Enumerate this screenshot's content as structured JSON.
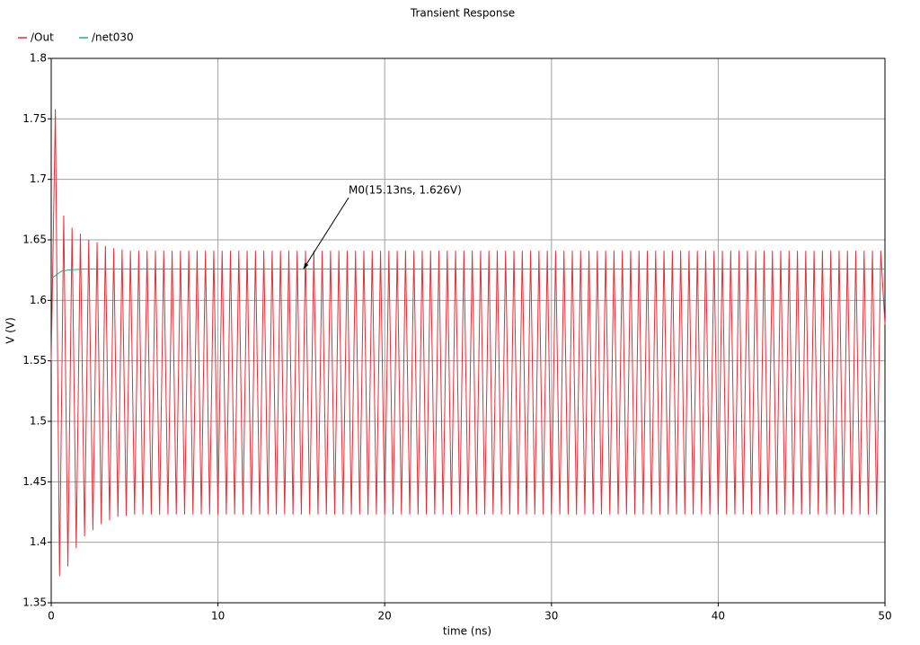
{
  "chart_data": {
    "type": "line",
    "title": "Transient Response",
    "xlabel": "time (ns)",
    "ylabel": "V (V)",
    "xlim": [
      0,
      50
    ],
    "ylim": [
      1.35,
      1.8
    ],
    "xticks": [
      0,
      10,
      20,
      30,
      40,
      50
    ],
    "yticks": [
      1.8,
      1.75,
      1.7,
      1.65,
      1.6,
      1.55,
      1.5,
      1.45,
      1.4,
      1.35
    ],
    "grid": true,
    "legend": "top-left",
    "series": [
      {
        "name": "/Out",
        "color": "#e0303a",
        "x": [
          0,
          0.25,
          0.5,
          0.75,
          1,
          1.25,
          1.5,
          1.75,
          2,
          2.25,
          2.5,
          2.75,
          3,
          3.25,
          3.5,
          3.75,
          4,
          4.25,
          4.5,
          4.75,
          5,
          5.25,
          5.5,
          5.75,
          6,
          6.25,
          6.5,
          6.75,
          7,
          7.25,
          7.5,
          7.75,
          8,
          8.25,
          8.5,
          8.75,
          9,
          9.25,
          9.5,
          9.75,
          10,
          10.25,
          10.5,
          10.75,
          11,
          11.25,
          11.5,
          11.75,
          12,
          12.25,
          12.5,
          12.75,
          13,
          13.25,
          13.5,
          13.75,
          14,
          14.25,
          14.5,
          14.75,
          15,
          15.25,
          15.5,
          15.75,
          16,
          16.25,
          16.5,
          16.75,
          17,
          17.25,
          17.5,
          17.75,
          18,
          18.25,
          18.5,
          18.75,
          19,
          19.25,
          19.5,
          19.75,
          20,
          20.25,
          20.5,
          20.75,
          21,
          21.25,
          21.5,
          21.75,
          22,
          22.25,
          22.5,
          22.75,
          23,
          23.25,
          23.5,
          23.75,
          24,
          24.25,
          24.5,
          24.75,
          25,
          25.25,
          25.5,
          25.75,
          26,
          26.25,
          26.5,
          26.75,
          27,
          27.25,
          27.5,
          27.75,
          28,
          28.25,
          28.5,
          28.75,
          29,
          29.25,
          29.5,
          29.75,
          30,
          30.25,
          30.5,
          30.75,
          31,
          31.25,
          31.5,
          31.75,
          32,
          32.25,
          32.5,
          32.75,
          33,
          33.25,
          33.5,
          33.75,
          34,
          34.25,
          34.5,
          34.75,
          35,
          35.25,
          35.5,
          35.75,
          36,
          36.25,
          36.5,
          36.75,
          37,
          37.25,
          37.5,
          37.75,
          38,
          38.25,
          38.5,
          38.75,
          39,
          39.25,
          39.5,
          39.75,
          40,
          40.25,
          40.5,
          40.75,
          41,
          41.25,
          41.5,
          41.75,
          42,
          42.25,
          42.5,
          42.75,
          43,
          43.25,
          43.5,
          43.75,
          44,
          44.25,
          44.5,
          44.75,
          45,
          45.25,
          45.5,
          45.75,
          46,
          46.25,
          46.5,
          46.75,
          47,
          47.25,
          47.5,
          47.75,
          48,
          48.25,
          48.5,
          48.75,
          49,
          49.25,
          49.5,
          49.75,
          50
        ],
        "values": [
          1.55,
          1.758,
          1.372,
          1.67,
          1.38,
          1.66,
          1.395,
          1.655,
          1.405,
          1.65,
          1.41,
          1.648,
          1.415,
          1.645,
          1.418,
          1.643,
          1.421,
          1.642,
          1.422,
          1.641,
          1.423,
          1.641,
          1.423,
          1.641,
          1.423,
          1.641,
          1.423,
          1.641,
          1.423,
          1.641,
          1.423,
          1.641,
          1.423,
          1.641,
          1.423,
          1.641,
          1.423,
          1.641,
          1.423,
          1.641,
          1.423,
          1.641,
          1.423,
          1.641,
          1.423,
          1.641,
          1.423,
          1.641,
          1.423,
          1.641,
          1.423,
          1.641,
          1.423,
          1.641,
          1.423,
          1.641,
          1.423,
          1.641,
          1.423,
          1.641,
          1.423,
          1.641,
          1.423,
          1.641,
          1.423,
          1.641,
          1.423,
          1.641,
          1.423,
          1.641,
          1.423,
          1.641,
          1.423,
          1.641,
          1.423,
          1.641,
          1.423,
          1.641,
          1.423,
          1.641,
          1.423,
          1.641,
          1.423,
          1.641,
          1.423,
          1.641,
          1.423,
          1.641,
          1.423,
          1.641,
          1.423,
          1.641,
          1.423,
          1.641,
          1.423,
          1.641,
          1.423,
          1.641,
          1.423,
          1.641,
          1.423,
          1.641,
          1.423,
          1.641,
          1.423,
          1.641,
          1.423,
          1.641,
          1.423,
          1.641,
          1.423,
          1.641,
          1.423,
          1.641,
          1.423,
          1.641,
          1.423,
          1.641,
          1.423,
          1.641,
          1.423,
          1.641,
          1.423,
          1.641,
          1.423,
          1.641,
          1.423,
          1.641,
          1.423,
          1.641,
          1.423,
          1.641,
          1.423,
          1.641,
          1.423,
          1.641,
          1.423,
          1.641,
          1.423,
          1.641,
          1.423,
          1.641,
          1.423,
          1.641,
          1.423,
          1.641,
          1.423,
          1.641,
          1.423,
          1.641,
          1.423,
          1.641,
          1.423,
          1.641,
          1.423,
          1.641,
          1.423,
          1.641,
          1.423,
          1.641,
          1.423,
          1.641,
          1.423,
          1.641,
          1.423,
          1.641,
          1.423,
          1.641,
          1.423,
          1.641,
          1.423,
          1.641,
          1.423,
          1.641,
          1.423,
          1.641,
          1.423,
          1.641,
          1.423,
          1.641,
          1.423,
          1.641,
          1.423,
          1.641,
          1.423,
          1.641,
          1.423,
          1.641,
          1.423,
          1.641,
          1.423,
          1.641,
          1.423,
          1.641,
          1.423,
          1.641,
          1.423,
          1.641,
          1.423,
          1.641,
          1.58
        ]
      },
      {
        "name": "/net030",
        "color": "#2aa88a",
        "x": [
          0,
          0.3,
          0.6,
          1,
          2,
          50
        ],
        "values": [
          1.618,
          1.621,
          1.624,
          1.625,
          1.626,
          1.626
        ]
      }
    ],
    "annotations": [
      {
        "text": "M0(15.13ns, 1.626V)",
        "x": 15.13,
        "y": 1.626
      }
    ]
  }
}
